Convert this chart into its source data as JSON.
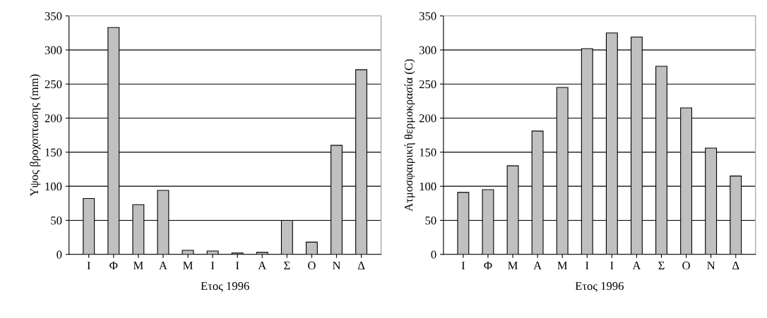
{
  "chart_data": [
    {
      "type": "bar",
      "categories": [
        "Ι",
        "Φ",
        "Μ",
        "Α",
        "Μ",
        "Ι",
        "Ι",
        "Α",
        "Σ",
        "Ο",
        "Ν",
        "Δ"
      ],
      "values": [
        82,
        333,
        73,
        94,
        6,
        5,
        2,
        3,
        50,
        18,
        160,
        271
      ],
      "color": "#c0c0c0",
      "xlabel": "Ετος 1996",
      "ylabel": "Υψος βροχοπτωσης (mm)",
      "ylim": [
        0,
        350
      ],
      "yticks": [
        0,
        50,
        100,
        150,
        200,
        250,
        300,
        350
      ],
      "grid": "y"
    },
    {
      "type": "bar",
      "categories": [
        "Ι",
        "Φ",
        "Μ",
        "Α",
        "Μ",
        "Ι",
        "Ι",
        "Α",
        "Σ",
        "Ο",
        "Ν",
        "Δ"
      ],
      "values": [
        91,
        95,
        130,
        181,
        245,
        302,
        325,
        319,
        276,
        215,
        156,
        115
      ],
      "color": "#c0c0c0",
      "xlabel": "Ετος 1996",
      "ylabel": "Ατμοσφαιρική θερμοκρασία (C)",
      "ylim": [
        0,
        350
      ],
      "yticks": [
        0,
        50,
        100,
        150,
        200,
        250,
        300,
        350
      ],
      "grid": "y"
    }
  ]
}
